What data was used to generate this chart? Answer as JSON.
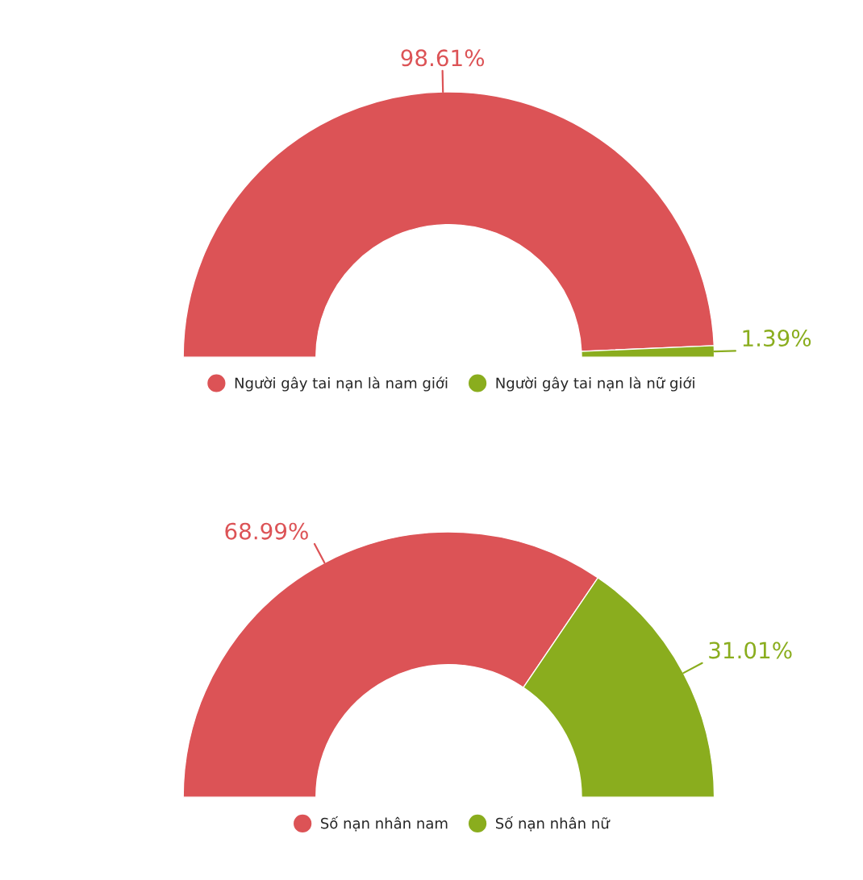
{
  "chart_data": [
    {
      "type": "donut",
      "categories": [
        "Người gây tai nạn là nam giới",
        "Người gây tai nạn là nữ giới"
      ],
      "values": [
        98.61,
        1.39
      ],
      "colors": [
        "#dc5356",
        "#8aad1e"
      ],
      "value_labels": [
        "98.61%",
        "1.39%"
      ],
      "legend": "bottom"
    },
    {
      "type": "donut",
      "categories": [
        "Số nạn nhân nam",
        "Số nạn nhân nữ"
      ],
      "values": [
        68.99,
        31.01
      ],
      "colors": [
        "#dc5356",
        "#8aad1e"
      ],
      "value_labels": [
        "68.99%",
        "31.01%"
      ],
      "legend": "bottom"
    }
  ]
}
